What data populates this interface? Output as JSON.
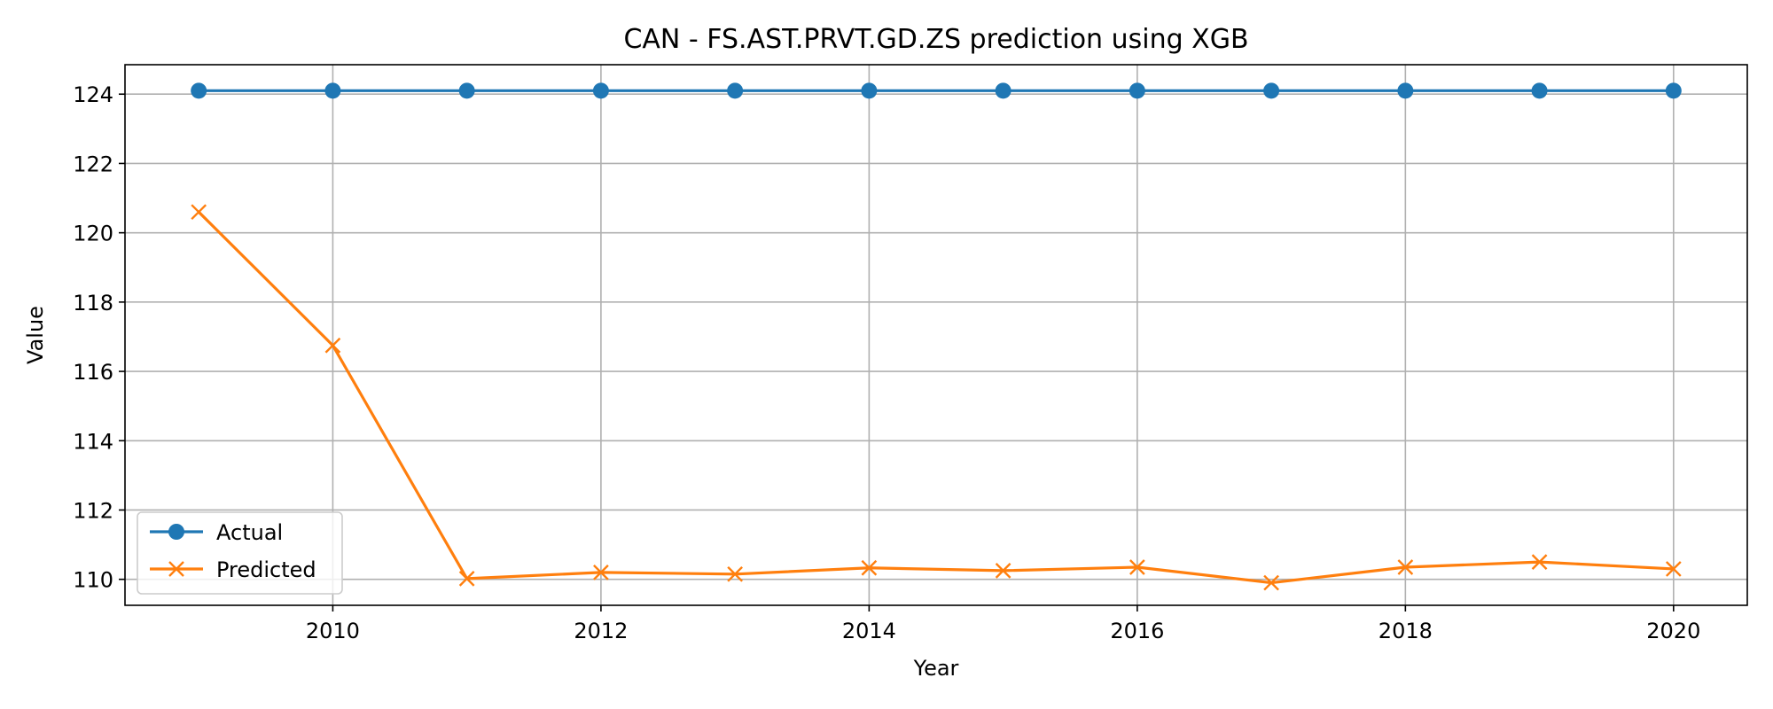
{
  "chart_data": {
    "type": "line",
    "title": "CAN - FS.AST.PRVT.GD.ZS prediction using XGB",
    "xlabel": "Year",
    "ylabel": "Value",
    "x": [
      2009,
      2010,
      2011,
      2012,
      2013,
      2014,
      2015,
      2016,
      2017,
      2018,
      2019,
      2020
    ],
    "xlim": [
      2008.45,
      2020.55
    ],
    "ylim": [
      109.25,
      124.85
    ],
    "xticks": [
      2010,
      2012,
      2014,
      2016,
      2018,
      2020
    ],
    "yticks": [
      110,
      112,
      114,
      116,
      118,
      120,
      122,
      124
    ],
    "grid": true,
    "legend_position": "lower-left",
    "series": [
      {
        "name": "Actual",
        "color": "#1f77b4",
        "marker": "circle",
        "values": [
          124.1,
          124.1,
          124.1,
          124.1,
          124.1,
          124.1,
          124.1,
          124.1,
          124.1,
          124.1,
          124.1,
          124.1
        ]
      },
      {
        "name": "Predicted",
        "color": "#ff7f0e",
        "marker": "x",
        "values": [
          120.6,
          116.75,
          110.02,
          110.2,
          110.15,
          110.33,
          110.25,
          110.35,
          109.9,
          110.35,
          110.5,
          110.3
        ]
      }
    ]
  }
}
